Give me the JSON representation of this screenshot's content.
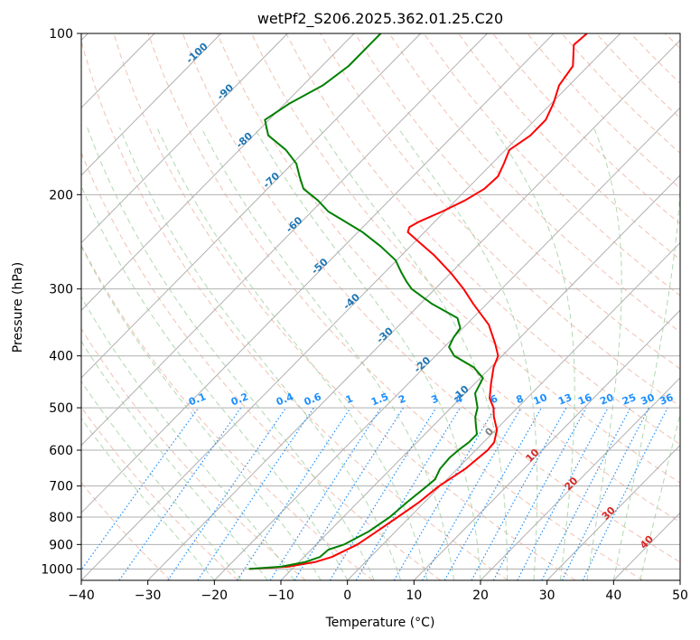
{
  "chart_data": {
    "type": "line",
    "title": "wetPf2_S206.2025.362.01.25.C20",
    "xlabel": "Temperature (°C)",
    "ylabel": "Pressure (hPa)",
    "xlim": [
      -40,
      50
    ],
    "ylim": [
      1050,
      100
    ],
    "x_ticks": [
      -40,
      -30,
      -20,
      -10,
      0,
      10,
      20,
      30,
      40,
      50
    ],
    "x_tick_labels": [
      "−40",
      "−30",
      "−20",
      "−10",
      "0",
      "10",
      "20",
      "30",
      "40",
      "50"
    ],
    "y_ticks": [
      100,
      200,
      300,
      400,
      500,
      600,
      700,
      800,
      900,
      1000
    ],
    "y_tick_labels": [
      "100",
      "200",
      "300",
      "400",
      "500",
      "600",
      "700",
      "800",
      "900",
      "1000"
    ],
    "skew": 45,
    "isotherm_labels": [
      {
        "text": "-100",
        "T": -100,
        "p": 110
      },
      {
        "text": "-90",
        "T": -90,
        "p": 130
      },
      {
        "text": "-80",
        "T": -80,
        "p": 160
      },
      {
        "text": "-70",
        "T": -70,
        "p": 190
      },
      {
        "text": "-60",
        "T": -60,
        "p": 230
      },
      {
        "text": "-50",
        "T": -50,
        "p": 275
      },
      {
        "text": "-40",
        "T": -40,
        "p": 320
      },
      {
        "text": "-30",
        "T": -30,
        "p": 370
      },
      {
        "text": "-20",
        "T": -20,
        "p": 420
      },
      {
        "text": "-10",
        "T": -10,
        "p": 475
      }
    ],
    "mixing_ratio_labels": [
      "0.1",
      "0.2",
      "0.4",
      "0.6",
      "1",
      "1.5",
      "2",
      "3",
      "4",
      "6",
      "8",
      "10",
      "13",
      "16",
      "20",
      "25",
      "30",
      "36"
    ],
    "mixing_ratio_values": [
      0.1,
      0.2,
      0.4,
      0.6,
      1,
      1.5,
      2,
      3,
      4,
      6,
      8,
      10,
      13,
      16,
      20,
      25,
      30,
      36
    ],
    "moist_adiabat_labels": [
      {
        "text": "0",
        "T": 0,
        "p": 560
      },
      {
        "text": "10",
        "T": 10,
        "p": 620
      },
      {
        "text": "20",
        "T": 20,
        "p": 700
      },
      {
        "text": "30",
        "T": 30,
        "p": 795
      },
      {
        "text": "40",
        "T": 40,
        "p": 900
      }
    ],
    "series": [
      {
        "name": "Temperature",
        "color": "#ff0000",
        "points": [
          [
            1000,
            -16.3
          ],
          [
            990,
            -11
          ],
          [
            970,
            -7.5
          ],
          [
            950,
            -5.8
          ],
          [
            900,
            -3.8
          ],
          [
            850,
            -2.8
          ],
          [
            800,
            -1.8
          ],
          [
            750,
            -0.8
          ],
          [
            700,
            -0.2
          ],
          [
            650,
            1.2
          ],
          [
            600,
            1.8
          ],
          [
            580,
            1.6
          ],
          [
            550,
            0.2
          ],
          [
            520,
            -2.2
          ],
          [
            500,
            -3.6
          ],
          [
            480,
            -5.6
          ],
          [
            450,
            -7.6
          ],
          [
            420,
            -9.6
          ],
          [
            400,
            -10.6
          ],
          [
            380,
            -12.8
          ],
          [
            350,
            -16.6
          ],
          [
            320,
            -22
          ],
          [
            300,
            -25.7
          ],
          [
            280,
            -30
          ],
          [
            260,
            -35
          ],
          [
            245,
            -39.4
          ],
          [
            235,
            -42.5
          ],
          [
            230,
            -43
          ],
          [
            225,
            -42.4
          ],
          [
            215,
            -40.4
          ],
          [
            205,
            -38.6
          ],
          [
            195,
            -37.4
          ],
          [
            185,
            -37.2
          ],
          [
            175,
            -38.2
          ],
          [
            165,
            -39.4
          ],
          [
            155,
            -38.4
          ],
          [
            145,
            -38.4
          ],
          [
            135,
            -39.7
          ],
          [
            125,
            -41.5
          ],
          [
            115,
            -42.3
          ],
          [
            105,
            -45.3
          ],
          [
            100,
            -45
          ]
        ]
      },
      {
        "name": "Dewpoint",
        "color": "#008000",
        "points": [
          [
            1000,
            -16.5
          ],
          [
            990,
            -12
          ],
          [
            970,
            -9
          ],
          [
            950,
            -7.6
          ],
          [
            920,
            -7.4
          ],
          [
            900,
            -5.8
          ],
          [
            850,
            -4
          ],
          [
            800,
            -3
          ],
          [
            750,
            -2.6
          ],
          [
            700,
            -2
          ],
          [
            680,
            -1.8
          ],
          [
            650,
            -2.6
          ],
          [
            620,
            -2.8
          ],
          [
            600,
            -2.6
          ],
          [
            580,
            -2.2
          ],
          [
            560,
            -2.2
          ],
          [
            540,
            -3.6
          ],
          [
            520,
            -5
          ],
          [
            500,
            -6
          ],
          [
            470,
            -8.5
          ],
          [
            440,
            -9.6
          ],
          [
            420,
            -12.6
          ],
          [
            400,
            -17.2
          ],
          [
            385,
            -19.3
          ],
          [
            370,
            -20
          ],
          [
            355,
            -20.4
          ],
          [
            340,
            -22.3
          ],
          [
            320,
            -28.2
          ],
          [
            300,
            -33.5
          ],
          [
            290,
            -35.5
          ],
          [
            280,
            -37.4
          ],
          [
            265,
            -40.2
          ],
          [
            250,
            -44.4
          ],
          [
            235,
            -49.3
          ],
          [
            225,
            -53.3
          ],
          [
            215,
            -57.5
          ],
          [
            205,
            -60.7
          ],
          [
            195,
            -64.6
          ],
          [
            185,
            -67
          ],
          [
            175,
            -69.4
          ],
          [
            165,
            -73
          ],
          [
            155,
            -77.8
          ],
          [
            145,
            -80.6
          ],
          [
            135,
            -79.3
          ],
          [
            125,
            -77
          ],
          [
            115,
            -76
          ],
          [
            105,
            -76
          ],
          [
            100,
            -76
          ]
        ]
      }
    ],
    "legend": "none",
    "grid": true
  },
  "colors": {
    "temperature": "#ff0000",
    "dewpoint": "#008000",
    "isotherm_label": "#1f77b4",
    "mixing_ratio": "#1e90ff",
    "moist_label": "#d62728",
    "zero_label": "#808080",
    "dry_adiabat": "#e8a088",
    "moist_adiabat": "#90c890",
    "grid": "#b0b0b0"
  }
}
